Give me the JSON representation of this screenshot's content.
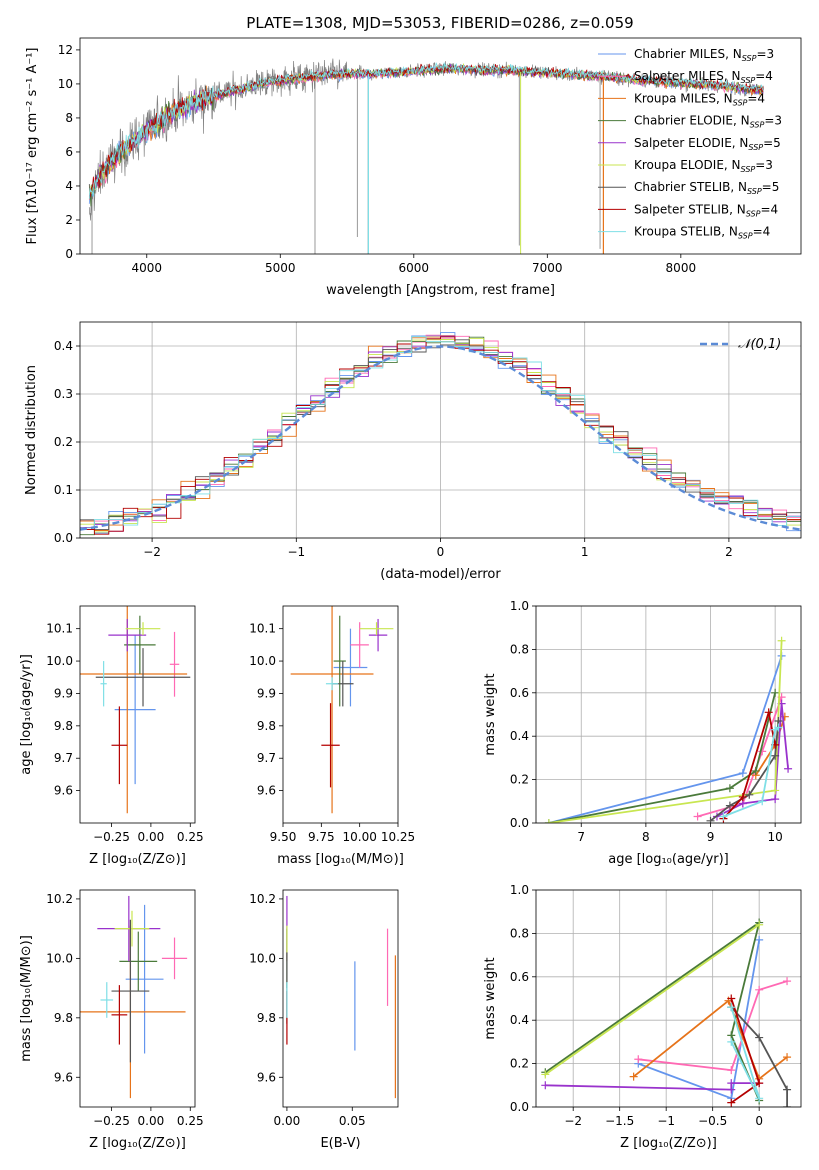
{
  "figure": {
    "title": "PLATE=1308, MJD=53053, FIBERID=0286, z=0.059"
  },
  "models": [
    {
      "name": "Chabrier MILES, N$_{SSP}$=3",
      "label_main": "Chabrier MILES, N",
      "label_sub": "SSP",
      "label_tail": "=3",
      "color": "#6495ed"
    },
    {
      "name": "Salpeter MILES, N$_{SSP}$=4",
      "label_main": "Salpeter MILES, N",
      "label_sub": "SSP",
      "label_tail": "=4",
      "color": "#ff69b4"
    },
    {
      "name": "Kroupa MILES, N$_{SSP}$=4",
      "label_main": "Kroupa MILES, N",
      "label_sub": "SSP",
      "label_tail": "=4",
      "color": "#e6731a"
    },
    {
      "name": "Chabrier ELODIE, N$_{SSP}$=3",
      "label_main": "Chabrier ELODIE, N",
      "label_sub": "SSP",
      "label_tail": "=3",
      "color": "#4a7a3a"
    },
    {
      "name": "Salpeter ELODIE, N$_{SSP}$=5",
      "label_main": "Salpeter ELODIE, N",
      "label_sub": "SSP",
      "label_tail": "=5",
      "color": "#9932cc"
    },
    {
      "name": "Kroupa ELODIE, N$_{SSP}$=3",
      "label_main": "Kroupa ELODIE, N",
      "label_sub": "SSP",
      "label_tail": "=3",
      "color": "#c8e650"
    },
    {
      "name": "Chabrier STELIB, N$_{SSP}$=5",
      "label_main": "Chabrier STELIB, N",
      "label_sub": "SSP",
      "label_tail": "=5",
      "color": "#555555"
    },
    {
      "name": "Salpeter STELIB, N$_{SSP}$=4",
      "label_main": "Salpeter STELIB, N",
      "label_sub": "SSP",
      "label_tail": "=4",
      "color": "#b40000"
    },
    {
      "name": "Kroupa STELIB, N$_{SSP}$=4",
      "label_main": "Kroupa STELIB, N",
      "label_sub": "SSP",
      "label_tail": "=4",
      "color": "#7fdfe6"
    }
  ],
  "data_color": "#808080",
  "chart_data": [
    {
      "id": "spectrum",
      "type": "line",
      "title": "PLATE=1308, MJD=53053, FIBERID=0286, z=0.059",
      "xlabel": "wavelength [Angstrom, rest frame]",
      "ylabel": "Flux [fλ10⁻¹⁷ erg cm⁻² s⁻¹ A⁻¹]",
      "xlim": [
        3500,
        8900
      ],
      "ylim": [
        0,
        12.7
      ],
      "xticks": [
        4000,
        5000,
        6000,
        7000,
        8000
      ],
      "yticks": [
        0,
        2,
        4,
        6,
        8,
        10,
        12
      ],
      "legend_position": "upper right",
      "continuum": {
        "x": [
          3570,
          3650,
          3750,
          3850,
          3950,
          4050,
          4150,
          4250,
          4350,
          4500,
          4700,
          4900,
          5100,
          5300,
          5500,
          5700,
          5900,
          6100,
          6300,
          6500,
          6700,
          6900,
          7100,
          7300,
          7500,
          7700,
          7900,
          8100,
          8300,
          8500,
          8620
        ],
        "y": [
          3.4,
          4.6,
          5.5,
          6.3,
          6.9,
          7.5,
          8.1,
          8.5,
          8.9,
          9.3,
          9.7,
          10.1,
          10.3,
          10.5,
          10.6,
          10.6,
          10.7,
          10.8,
          10.9,
          10.8,
          10.8,
          10.7,
          10.6,
          10.5,
          10.4,
          10.2,
          10.1,
          10.0,
          9.9,
          9.7,
          9.6
        ]
      }
    },
    {
      "id": "residuals",
      "type": "bar",
      "xlabel": "(data-model)/error",
      "ylabel": "Normed distribution",
      "xlim": [
        -2.5,
        2.5
      ],
      "ylim": [
        0,
        0.45
      ],
      "xticks": [
        -2,
        -1,
        0,
        1,
        2
      ],
      "yticks": [
        0.0,
        0.1,
        0.2,
        0.3,
        0.4
      ],
      "bin_width": 0.1,
      "bin_start": -2.5,
      "gaussian_label": "𝒩(0,1)",
      "gaussian_color": "#5b8bd6",
      "grid": true
    },
    {
      "id": "age_vs_Z",
      "type": "scatter",
      "xlabel": "Z [log₁₀(Z/Z⊙)]",
      "ylabel": "age  [log₁₀(age/yr)]",
      "xlim": [
        -0.45,
        0.28
      ],
      "ylim": [
        9.5,
        10.17
      ],
      "xticks": [
        -0.25,
        0.0,
        0.25
      ],
      "yticks": [
        9.6,
        9.7,
        9.8,
        9.9,
        10.0,
        10.1
      ],
      "points": [
        {
          "model": 0,
          "x": -0.1,
          "y": 9.85,
          "xerr": 0.13,
          "yerr": 0.23
        },
        {
          "model": 1,
          "x": 0.15,
          "y": 9.99,
          "xerr": 0.03,
          "yerr": 0.1
        },
        {
          "model": 2,
          "x": -0.15,
          "y": 9.96,
          "xerr": 0.38,
          "yerr": 0.43
        },
        {
          "model": 3,
          "x": -0.07,
          "y": 10.05,
          "xerr": 0.1,
          "yerr": 0.09
        },
        {
          "model": 4,
          "x": -0.15,
          "y": 10.08,
          "xerr": 0.12,
          "yerr": 0.05
        },
        {
          "model": 5,
          "x": -0.05,
          "y": 10.1,
          "xerr": 0.11,
          "yerr": 0.02
        },
        {
          "model": 6,
          "x": -0.05,
          "y": 9.95,
          "xerr": 0.3,
          "yerr": 0.09
        },
        {
          "model": 7,
          "x": -0.2,
          "y": 9.74,
          "xerr": 0.05,
          "yerr": 0.12
        },
        {
          "model": 8,
          "x": -0.3,
          "y": 9.93,
          "xerr": 0.02,
          "yerr": 0.07
        }
      ]
    },
    {
      "id": "age_vs_mass",
      "type": "scatter",
      "xlabel": "mass [log₁₀(M/M⊙)]",
      "ylabel": "",
      "xlim": [
        9.5,
        10.25
      ],
      "ylim": [
        9.5,
        10.17
      ],
      "xticks": [
        9.5,
        9.75,
        10.0,
        10.25
      ],
      "yticks": [
        9.6,
        9.7,
        9.8,
        9.9,
        10.0,
        10.1
      ],
      "points": [
        {
          "model": 0,
          "x": 9.94,
          "y": 9.98,
          "xerr": 0.11,
          "yerr": 0.12
        },
        {
          "model": 1,
          "x": 10.0,
          "y": 10.05,
          "xerr": 0.06,
          "yerr": 0.07
        },
        {
          "model": 2,
          "x": 9.82,
          "y": 9.96,
          "xerr": 0.27,
          "yerr": 0.43
        },
        {
          "model": 3,
          "x": 9.87,
          "y": 10.0,
          "xerr": 0.04,
          "yerr": 0.14
        },
        {
          "model": 4,
          "x": 10.12,
          "y": 10.08,
          "xerr": 0.06,
          "yerr": 0.05
        },
        {
          "model": 5,
          "x": 10.11,
          "y": 10.1,
          "xerr": 0.11,
          "yerr": 0.02
        },
        {
          "model": 6,
          "x": 9.89,
          "y": 9.93,
          "xerr": 0.07,
          "yerr": 0.07
        },
        {
          "model": 7,
          "x": 9.81,
          "y": 9.74,
          "xerr": 0.06,
          "yerr": 0.13
        },
        {
          "model": 8,
          "x": 9.82,
          "y": 9.93,
          "xerr": 0.04,
          "yerr": 0.02
        }
      ]
    },
    {
      "id": "massweight_vs_age",
      "type": "line",
      "xlabel": "age  [log₁₀(age/yr)]",
      "ylabel": "mass weight",
      "xlim": [
        6.3,
        10.4
      ],
      "ylim": [
        0.0,
        1.0
      ],
      "xticks": [
        7,
        8,
        9,
        10
      ],
      "yticks": [
        0.0,
        0.2,
        0.4,
        0.6,
        0.8,
        1.0
      ],
      "grid": true,
      "series": [
        {
          "model": 0,
          "x": [
            6.5,
            9.5,
            10.1
          ],
          "y": [
            0.0,
            0.23,
            0.77
          ]
        },
        {
          "model": 1,
          "x": [
            8.8,
            9.5,
            9.8,
            10.1
          ],
          "y": [
            0.03,
            0.09,
            0.33,
            0.58
          ]
        },
        {
          "model": 2,
          "x": [
            9.7,
            10.0,
            10.15
          ],
          "y": [
            0.22,
            0.36,
            0.49
          ]
        },
        {
          "model": 3,
          "x": [
            6.5,
            9.3,
            9.7,
            10.0
          ],
          "y": [
            0.0,
            0.16,
            0.24,
            0.6
          ]
        },
        {
          "model": 4,
          "x": [
            9.1,
            9.5,
            10.0,
            10.1,
            10.2
          ],
          "y": [
            0.03,
            0.09,
            0.11,
            0.55,
            0.25
          ]
        },
        {
          "model": 5,
          "x": [
            6.5,
            10.0,
            10.1
          ],
          "y": [
            0.0,
            0.15,
            0.84
          ]
        },
        {
          "model": 6,
          "x": [
            9.0,
            9.3,
            9.6,
            10.0,
            10.05
          ],
          "y": [
            0.01,
            0.08,
            0.13,
            0.31,
            0.47
          ]
        },
        {
          "model": 7,
          "x": [
            9.2,
            9.5,
            9.9,
            10.0
          ],
          "y": [
            0.02,
            0.12,
            0.51,
            0.36
          ]
        },
        {
          "model": 8,
          "x": [
            9.2,
            9.8,
            10.0,
            10.05
          ],
          "y": [
            0.03,
            0.1,
            0.43,
            0.44
          ]
        }
      ]
    },
    {
      "id": "mass_vs_Z",
      "type": "scatter",
      "xlabel": "Z [log₁₀(Z/Z⊙)]",
      "ylabel": "mass [log₁₀(M/M⊙)]",
      "xlim": [
        -0.45,
        0.28
      ],
      "ylim": [
        9.5,
        10.23
      ],
      "xticks": [
        -0.25,
        0.0,
        0.25
      ],
      "yticks": [
        9.6,
        9.8,
        10.0,
        10.2
      ],
      "points": [
        {
          "model": 0,
          "x": -0.04,
          "y": 9.93,
          "xerr": 0.12,
          "yerr": 0.25
        },
        {
          "model": 1,
          "x": 0.15,
          "y": 10.0,
          "xerr": 0.08,
          "yerr": 0.07
        },
        {
          "model": 2,
          "x": -0.13,
          "y": 9.82,
          "xerr": 0.35,
          "yerr": 0.29
        },
        {
          "model": 3,
          "x": -0.08,
          "y": 9.99,
          "xerr": 0.12,
          "yerr": 0.1
        },
        {
          "model": 4,
          "x": -0.14,
          "y": 10.1,
          "xerr": 0.2,
          "yerr": 0.11
        },
        {
          "model": 5,
          "x": -0.12,
          "y": 10.1,
          "xerr": 0.11,
          "yerr": 0.06
        },
        {
          "model": 6,
          "x": -0.13,
          "y": 9.89,
          "xerr": 0.12,
          "yerr": 0.24
        },
        {
          "model": 7,
          "x": -0.2,
          "y": 9.81,
          "xerr": 0.05,
          "yerr": 0.1
        },
        {
          "model": 8,
          "x": -0.28,
          "y": 9.86,
          "xerr": 0.04,
          "yerr": 0.06
        }
      ]
    },
    {
      "id": "mass_vs_EBV",
      "type": "scatter",
      "xlabel": "E(B-V)",
      "ylabel": "",
      "xlim": [
        -0.003,
        0.085
      ],
      "ylim": [
        9.5,
        10.23
      ],
      "xticks": [
        0.0,
        0.05
      ],
      "yticks": [
        9.6,
        9.8,
        10.0,
        10.2
      ],
      "points": [
        {
          "model": 0,
          "x": 0.052,
          "y": 9.84,
          "xerr": 0,
          "yerr": 0.15
        },
        {
          "model": 1,
          "x": 0.077,
          "y": 9.97,
          "xerr": 0,
          "yerr": 0.13
        },
        {
          "model": 2,
          "x": 0.083,
          "y": 9.77,
          "xerr": 0,
          "yerr": 0.24
        },
        {
          "model": 3,
          "x": 0.0,
          "y": 10.0,
          "xerr": 0,
          "yerr": 0.1
        },
        {
          "model": 4,
          "x": 0.0,
          "y": 10.1,
          "xerr": 0,
          "yerr": 0.11
        },
        {
          "model": 5,
          "x": 0.0,
          "y": 10.05,
          "xerr": 0,
          "yerr": 0.06
        },
        {
          "model": 6,
          "x": 0.0,
          "y": 9.9,
          "xerr": 0,
          "yerr": 0.12
        },
        {
          "model": 7,
          "x": 0.0,
          "y": 9.8,
          "xerr": 0,
          "yerr": 0.09
        },
        {
          "model": 8,
          "x": 0.0,
          "y": 9.86,
          "xerr": 0,
          "yerr": 0.06
        }
      ]
    },
    {
      "id": "massweight_vs_Z",
      "type": "line",
      "xlabel": "Z [log₁₀(Z/Z⊙)]",
      "ylabel": "mass weight",
      "xlim": [
        -2.4,
        0.45
      ],
      "ylim": [
        0.0,
        1.0
      ],
      "xticks": [
        -2.0,
        -1.5,
        -1.0,
        -0.5,
        0.0
      ],
      "yticks": [
        0.0,
        0.2,
        0.4,
        0.6,
        0.8,
        1.0
      ],
      "grid": true,
      "series": [
        {
          "model": 0,
          "x": [
            -1.3,
            -0.3,
            0.0
          ],
          "y": [
            0.2,
            0.04,
            0.77
          ]
        },
        {
          "model": 1,
          "x": [
            -1.3,
            -0.3,
            0.0,
            0.3
          ],
          "y": [
            0.22,
            0.17,
            0.54,
            0.58
          ]
        },
        {
          "model": 2,
          "x": [
            -1.35,
            -0.33,
            0.0,
            0.3
          ],
          "y": [
            0.14,
            0.49,
            0.13,
            0.23
          ]
        },
        {
          "model": 3,
          "x": [
            -2.3,
            0.0,
            -0.3,
            0.0
          ],
          "y": [
            0.16,
            0.85,
            0.33,
            0.03
          ]
        },
        {
          "model": 4,
          "x": [
            -2.3,
            -0.3,
            -0.3,
            0.0
          ],
          "y": [
            0.1,
            0.08,
            0.11,
            0.11
          ]
        },
        {
          "model": 5,
          "x": [
            -2.3,
            0.0
          ],
          "y": [
            0.15,
            0.84
          ]
        },
        {
          "model": 6,
          "x": [
            -0.3,
            0.0,
            0.3,
            0.3
          ],
          "y": [
            0.46,
            0.32,
            0.08,
            0.0
          ]
        },
        {
          "model": 7,
          "x": [
            -0.3,
            0.0,
            -0.3
          ],
          "y": [
            0.5,
            0.11,
            0.02
          ]
        },
        {
          "model": 8,
          "x": [
            -0.3,
            0.0,
            -0.3
          ],
          "y": [
            0.46,
            0.04,
            0.3
          ]
        }
      ]
    }
  ]
}
